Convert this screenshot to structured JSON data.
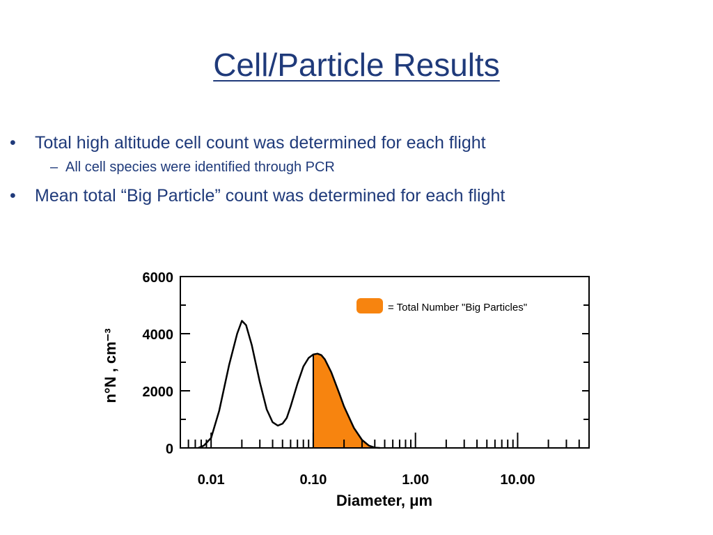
{
  "slide": {
    "title": "Cell/Particle Results",
    "bullets": [
      "Total high altitude cell count was determined for each flight",
      "All cell species were identified through PCR",
      "Mean total “Big Particle” count was determined for each flight"
    ],
    "bullet_glyph": "•",
    "dash_glyph": "–"
  },
  "colors": {
    "text": "#1f3a7a",
    "fill": "#f7840f"
  },
  "chart_data": {
    "type": "line",
    "x_scale": "log",
    "xlabel": "Diameter,  μm",
    "ylabel": "n°N ,  cm⁻³",
    "ylim": [
      0,
      6000
    ],
    "yticks": [
      "0",
      "2000",
      "4000",
      "6000"
    ],
    "xticks": [
      "0.01",
      "0.10",
      "1.00",
      "10.00"
    ],
    "legend_label": "= Total Number \"Big Particles\"",
    "legend_position": "top-right",
    "shaded_region_from": 0.1,
    "series": [
      {
        "x": [
          0.0075,
          0.0085,
          0.01,
          0.012,
          0.015,
          0.018,
          0.02,
          0.022,
          0.025,
          0.03,
          0.035,
          0.04,
          0.045,
          0.05,
          0.055,
          0.06,
          0.07,
          0.08,
          0.09,
          0.1,
          0.11,
          0.12,
          0.13,
          0.15,
          0.18,
          0.2,
          0.25,
          0.3,
          0.35,
          0.4,
          0.45
        ],
        "y": [
          0,
          80,
          350,
          1300,
          2900,
          4000,
          4450,
          4300,
          3600,
          2300,
          1350,
          900,
          780,
          850,
          1050,
          1450,
          2250,
          2850,
          3150,
          3270,
          3300,
          3250,
          3100,
          2650,
          1900,
          1450,
          700,
          280,
          80,
          10,
          0
        ]
      }
    ]
  }
}
